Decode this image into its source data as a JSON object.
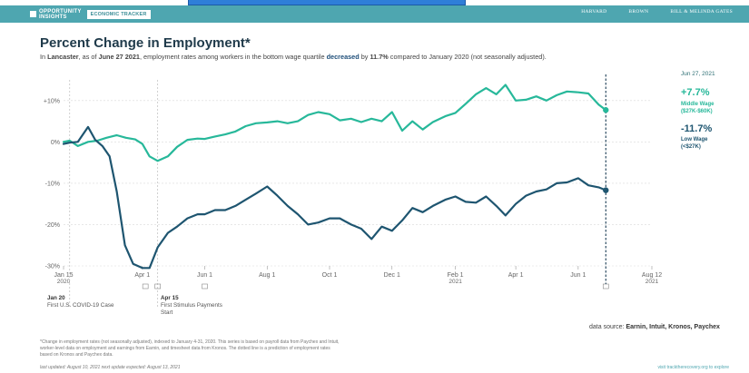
{
  "header": {
    "brand_line1": "OPPORTUNITY",
    "brand_line2": "INSIGHTS",
    "tracker": "ECONOMIC TRACKER",
    "partners": [
      "HARVARD",
      "BROWN",
      "BILL & MELINDA GATES"
    ]
  },
  "title": "Percent Change in Employment*",
  "subtitle": {
    "p1": "In ",
    "place": "Lancaster",
    "p2": ", as of ",
    "date": "June 27 2021",
    "p3": ", employment rates among workers in the bottom wage quartile ",
    "direction": "decreased",
    "p4": " by ",
    "amount": "11.7%",
    "p5": " compared to January 2020 (not seasonally adjusted)."
  },
  "side": {
    "date": "Jun 27, 2021",
    "middle_value": "+7.7%",
    "middle_label_1": "Middle Wage",
    "middle_label_2": "($27K-$60K)",
    "low_value": "-11.7%",
    "low_label_1": "Low Wage",
    "low_label_2": "(<$27K)"
  },
  "events": {
    "e1_date": "Jan 20",
    "e1_text": "First U.S. COVID-19 Case",
    "e2_date": "Apr 15",
    "e2_text_1": "First Stimulus Payments",
    "e2_text_2": "Start"
  },
  "source": {
    "prefix": "data source: ",
    "names": "Earnin, Intuit, Kronos, Paychex"
  },
  "footer": {
    "note": "*Change in employment rates (not seasonally adjusted), indexed to January 4-31, 2020. This series is based on payroll data from Paychex and Intuit, worker-level data on employment and earnings from Earnin, and timesheet data from Kronos. The dotted line is a prediction of employment rates based on Kronos and Paychex data.",
    "updated": "last updated: August 10, 2021      next update expected: August 13, 2021",
    "visit": "visit tracktherecovery.org to explore"
  },
  "colors": {
    "middle": "#27b89a",
    "low": "#1e5570",
    "accent": "#4ea6b0"
  },
  "chart_data": {
    "type": "line",
    "title": "Percent Change in Employment*",
    "xlabel": "",
    "ylabel": "",
    "ylim": [
      -30,
      15
    ],
    "yticks": [
      {
        "v": 10,
        "label": "+10%"
      },
      {
        "v": 0,
        "label": "0%"
      },
      {
        "v": -10,
        "label": "-10%"
      },
      {
        "v": -20,
        "label": "-20%"
      },
      {
        "v": -30,
        "label": "-30%"
      }
    ],
    "xticks": [
      {
        "day": 14,
        "label": "Jan 15",
        "sub": "2020"
      },
      {
        "day": 91,
        "label": "Apr 1",
        "sub": ""
      },
      {
        "day": 152,
        "label": "Jun 1",
        "sub": ""
      },
      {
        "day": 213,
        "label": "Aug 1",
        "sub": ""
      },
      {
        "day": 274,
        "label": "Oct 1",
        "sub": ""
      },
      {
        "day": 335,
        "label": "Dec 1",
        "sub": ""
      },
      {
        "day": 397,
        "label": "Feb 1",
        "sub": "2021"
      },
      {
        "day": 456,
        "label": "Apr 1",
        "sub": ""
      },
      {
        "day": 517,
        "label": "Jun 1",
        "sub": ""
      },
      {
        "day": 589,
        "label": "Aug 12",
        "sub": "2021"
      }
    ],
    "event_days": [
      20,
      106
    ],
    "current_day": 544,
    "series": [
      {
        "name": "Middle Wage ($27K-$60K)",
        "values": [
          [
            14,
            0
          ],
          [
            20,
            0.3
          ],
          [
            28,
            -1
          ],
          [
            38,
            0
          ],
          [
            47,
            0.3
          ],
          [
            56,
            1
          ],
          [
            66,
            1.6
          ],
          [
            75,
            1
          ],
          [
            84,
            0.6
          ],
          [
            91,
            -0.5
          ],
          [
            98,
            -3.5
          ],
          [
            106,
            -4.6
          ],
          [
            116,
            -3.5
          ],
          [
            125,
            -1.2
          ],
          [
            135,
            0.5
          ],
          [
            145,
            0.8
          ],
          [
            152,
            0.7
          ],
          [
            162,
            1.3
          ],
          [
            172,
            1.8
          ],
          [
            182,
            2.5
          ],
          [
            192,
            3.8
          ],
          [
            202,
            4.5
          ],
          [
            213,
            4.7
          ],
          [
            223,
            5
          ],
          [
            233,
            4.5
          ],
          [
            243,
            5
          ],
          [
            253,
            6.5
          ],
          [
            263,
            7.2
          ],
          [
            274,
            6.7
          ],
          [
            284,
            5.2
          ],
          [
            295,
            5.6
          ],
          [
            305,
            4.8
          ],
          [
            315,
            5.6
          ],
          [
            325,
            5
          ],
          [
            335,
            7.2
          ],
          [
            345,
            2.7
          ],
          [
            355,
            5
          ],
          [
            365,
            3
          ],
          [
            375,
            4.8
          ],
          [
            387,
            6.2
          ],
          [
            397,
            7
          ],
          [
            407,
            9.2
          ],
          [
            417,
            11.5
          ],
          [
            427,
            13
          ],
          [
            437,
            11.5
          ],
          [
            446,
            13.8
          ],
          [
            456,
            10
          ],
          [
            466,
            10.2
          ],
          [
            476,
            11
          ],
          [
            486,
            10
          ],
          [
            496,
            11.3
          ],
          [
            506,
            12.2
          ],
          [
            517,
            12
          ],
          [
            527,
            11.7
          ],
          [
            537,
            9
          ],
          [
            544,
            7.7
          ]
        ]
      },
      {
        "name": "Low Wage (<$27K)",
        "values": [
          [
            14,
            -0.5
          ],
          [
            20,
            -0.2
          ],
          [
            28,
            0
          ],
          [
            38,
            3.6
          ],
          [
            45,
            0.5
          ],
          [
            52,
            -1
          ],
          [
            59,
            -3.5
          ],
          [
            66,
            -12
          ],
          [
            74,
            -25
          ],
          [
            82,
            -29.5
          ],
          [
            91,
            -30.5
          ],
          [
            98,
            -30.5
          ],
          [
            106,
            -25.5
          ],
          [
            116,
            -22
          ],
          [
            125,
            -20.5
          ],
          [
            135,
            -18.5
          ],
          [
            145,
            -17.5
          ],
          [
            152,
            -17.5
          ],
          [
            162,
            -16.5
          ],
          [
            172,
            -16.5
          ],
          [
            182,
            -15.5
          ],
          [
            192,
            -14
          ],
          [
            202,
            -12.5
          ],
          [
            213,
            -10.8
          ],
          [
            223,
            -13
          ],
          [
            233,
            -15.5
          ],
          [
            243,
            -17.5
          ],
          [
            253,
            -20
          ],
          [
            263,
            -19.5
          ],
          [
            274,
            -18.5
          ],
          [
            284,
            -18.5
          ],
          [
            295,
            -20
          ],
          [
            305,
            -21
          ],
          [
            315,
            -23.5
          ],
          [
            325,
            -20.5
          ],
          [
            335,
            -21.5
          ],
          [
            345,
            -19
          ],
          [
            355,
            -16
          ],
          [
            365,
            -17
          ],
          [
            375,
            -15.5
          ],
          [
            387,
            -14
          ],
          [
            397,
            -13.2
          ],
          [
            407,
            -14.5
          ],
          [
            417,
            -14.7
          ],
          [
            427,
            -13.2
          ],
          [
            437,
            -15.5
          ],
          [
            446,
            -17.8
          ],
          [
            456,
            -15
          ],
          [
            466,
            -13
          ],
          [
            476,
            -12
          ],
          [
            486,
            -11.5
          ],
          [
            496,
            -10
          ],
          [
            506,
            -9.8
          ],
          [
            517,
            -8.8
          ],
          [
            527,
            -10.5
          ],
          [
            537,
            -11
          ],
          [
            544,
            -11.7
          ]
        ]
      }
    ]
  }
}
